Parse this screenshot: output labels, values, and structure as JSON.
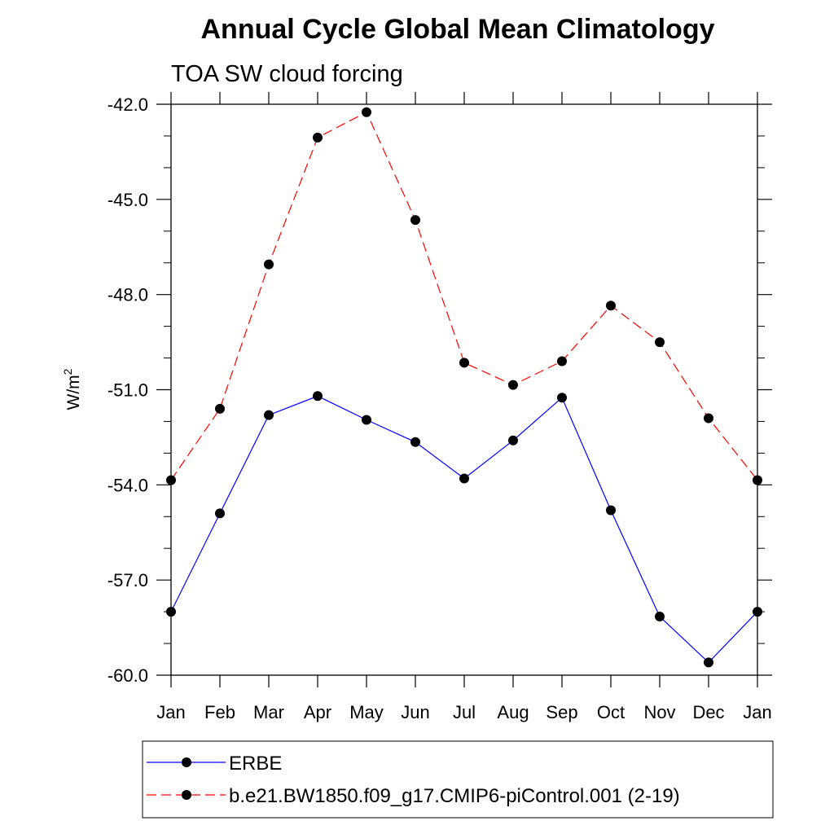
{
  "chart_data": {
    "type": "line",
    "title": "Annual Cycle Global Mean Climatology",
    "subtitle": "TOA SW cloud forcing",
    "ylabel_base": "W/m",
    "ylabel_sup": "2",
    "ylim": [
      -60.0,
      -42.0
    ],
    "y_ticks": [
      -42.0,
      -45.0,
      -48.0,
      -51.0,
      -54.0,
      -57.0,
      -60.0
    ],
    "y_tick_labels": [
      "-42.0",
      "-45.0",
      "-48.0",
      "-51.0",
      "-54.0",
      "-57.0",
      "-60.0"
    ],
    "categories": [
      "Jan",
      "Feb",
      "Mar",
      "Apr",
      "May",
      "Jun",
      "Jul",
      "Aug",
      "Sep",
      "Oct",
      "Nov",
      "Dec",
      "Jan"
    ],
    "series": [
      {
        "name": "ERBE",
        "color": "#0000ff",
        "dash": "solid",
        "values": [
          -58.0,
          -54.9,
          -51.8,
          -51.2,
          -51.95,
          -52.65,
          -53.8,
          -52.6,
          -51.25,
          -54.8,
          -58.15,
          -59.6,
          -58.0
        ]
      },
      {
        "name": "b.e21.BW1850.f09_g17.CMIP6-piControl.001 (2-19)",
        "color": "#ff0000",
        "dash": "dashed",
        "values": [
          -53.85,
          -51.6,
          -47.05,
          -43.05,
          -42.25,
          -45.65,
          -50.15,
          -50.85,
          -50.1,
          -48.35,
          -49.5,
          -51.9,
          -53.85
        ]
      }
    ],
    "marker_color": "#000000",
    "legend_position": "bottom"
  }
}
